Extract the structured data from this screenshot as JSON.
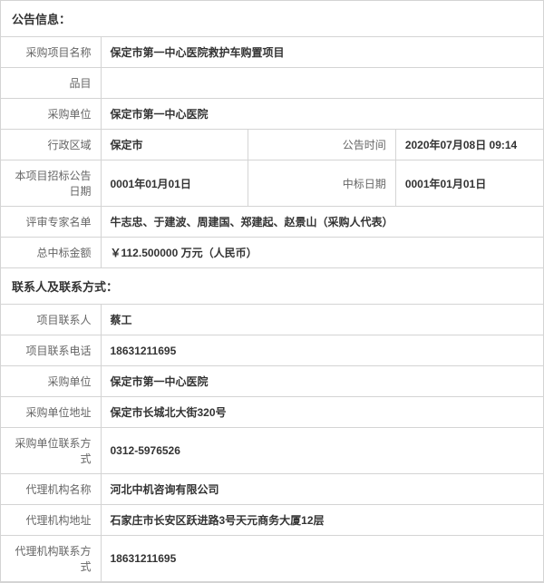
{
  "sections": {
    "info_header": "公告信息：",
    "contact_header": "联系人及联系方式："
  },
  "info": {
    "project_name_label": "采购项目名称",
    "project_name": "保定市第一中心医院救护车购置项目",
    "category_label": "品目",
    "category": "",
    "purchaser_label": "采购单位",
    "purchaser": "保定市第一中心医院",
    "region_label": "行政区域",
    "region": "保定市",
    "announce_time_label": "公告时间",
    "announce_time": "2020年07月08日  09:14",
    "bid_date_label": "本项目招标公告日期",
    "bid_date": "0001年01月01日",
    "award_date_label": "中标日期",
    "award_date": "0001年01月01日",
    "experts_label": "评审专家名单",
    "experts": "牛志忠、于建波、周建国、郑建起、赵景山（采购人代表）",
    "total_amount_label": "总中标金额",
    "total_amount": "￥112.500000 万元（人民币）"
  },
  "contact": {
    "contact_person_label": "项目联系人",
    "contact_person": "蔡工",
    "contact_phone_label": "项目联系电话",
    "contact_phone": "18631211695",
    "purchaser_label": "采购单位",
    "purchaser": "保定市第一中心医院",
    "purchaser_addr_label": "采购单位地址",
    "purchaser_addr": "保定市长城北大街320号",
    "purchaser_contact_label": "采购单位联系方式",
    "purchaser_contact": "0312-5976526",
    "agency_name_label": "代理机构名称",
    "agency_name": "河北中机咨询有限公司",
    "agency_addr_label": "代理机构地址",
    "agency_addr": "石家庄市长安区跃进路3号天元商务大厦12层",
    "agency_contact_label": "代理机构联系方式",
    "agency_contact": "18631211695"
  }
}
